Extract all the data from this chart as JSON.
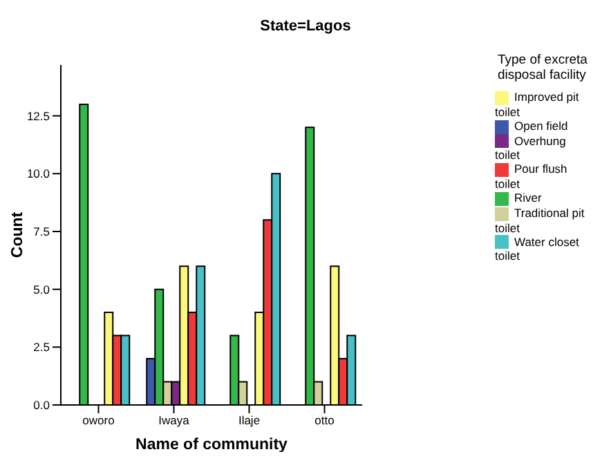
{
  "chart_data": {
    "type": "bar",
    "title": "State=Lagos",
    "xlabel": "Name of community",
    "ylabel": "Count",
    "legend_title": "Type of excreta disposal facility",
    "categories": [
      "oworo",
      "Iwaya",
      "Ilaje",
      "otto"
    ],
    "series": [
      {
        "name": "Open field",
        "color": "#3e58ac",
        "values": [
          0,
          2,
          0,
          0
        ]
      },
      {
        "name": "River",
        "color": "#33b84a",
        "values": [
          13,
          5,
          3,
          12
        ]
      },
      {
        "name": "Traditional pit toilet",
        "color": "#d4cf9b",
        "values": [
          0,
          1,
          1,
          1
        ]
      },
      {
        "name": "Overhung toilet",
        "color": "#7a2a84",
        "values": [
          0,
          1,
          0,
          0
        ]
      },
      {
        "name": "Improved pit toilet",
        "color": "#fbf87b",
        "values": [
          4,
          6,
          4,
          6
        ]
      },
      {
        "name": "Pour flush toilet",
        "color": "#ef3a3a",
        "values": [
          3,
          4,
          8,
          2
        ]
      },
      {
        "name": "Water closet toilet",
        "color": "#48c1c6",
        "values": [
          3,
          6,
          10,
          3
        ]
      }
    ],
    "ylim": [
      0,
      14.7
    ],
    "yticks": [
      {
        "value": 0,
        "label": "0.0"
      },
      {
        "value": 2.5,
        "label": "2.5"
      },
      {
        "value": 5,
        "label": "5.0"
      },
      {
        "value": 7.5,
        "label": "7.5"
      },
      {
        "value": 10,
        "label": "10.0"
      },
      {
        "value": 12.5,
        "label": "12.5"
      }
    ],
    "grid": false,
    "legend": "right"
  }
}
